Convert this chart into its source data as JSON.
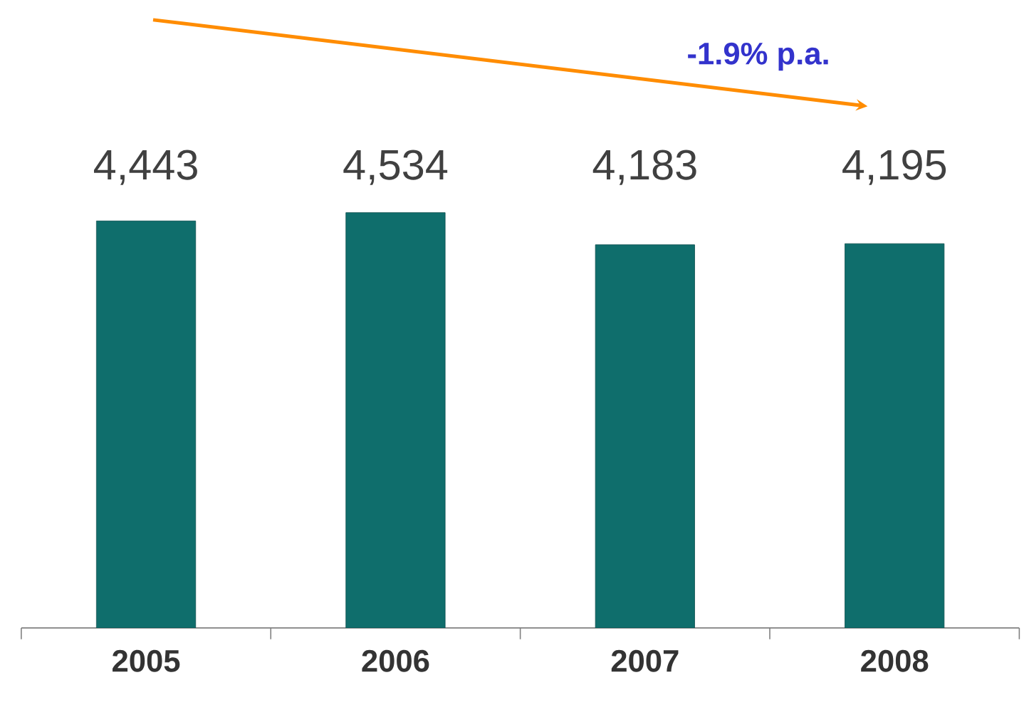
{
  "chart_data": {
    "type": "bar",
    "categories": [
      "2005",
      "2006",
      "2007",
      "2008"
    ],
    "values": [
      4443,
      4534,
      4183,
      4195
    ],
    "color": "#0f6e6c",
    "value_labels": [
      "4,443",
      "4,534",
      "4,183",
      "4,195"
    ],
    "annotations": [
      "-1.9%  p.a."
    ]
  }
}
